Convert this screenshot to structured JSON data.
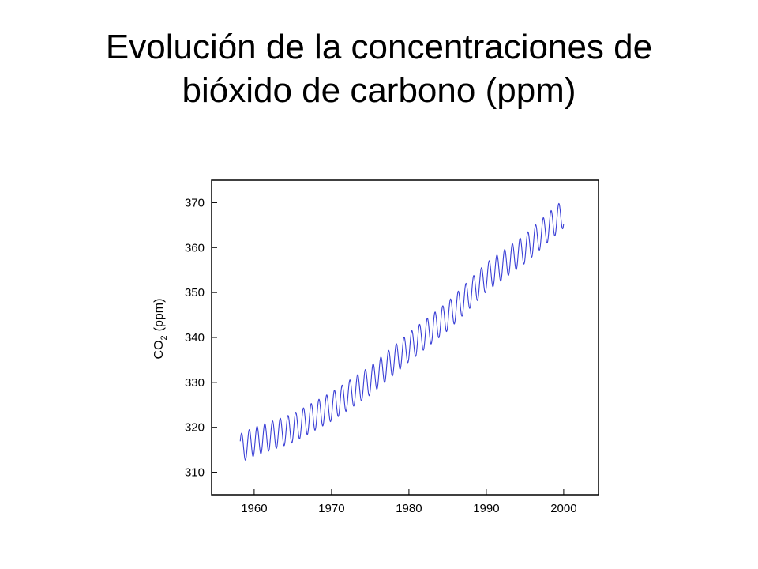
{
  "title": {
    "line1": "Evolución de la concentraciones de",
    "line2": "bióxido de carbono (ppm)"
  },
  "chart_data": {
    "type": "line",
    "ylabel": "CO",
    "ylabel_sub": "2",
    "ylabel_unit": "(ppm)",
    "xlabel": "",
    "xlim": [
      1954.5,
      2004.5
    ],
    "ylim": [
      305,
      375
    ],
    "x_ticks": [
      1960,
      1970,
      1980,
      1990,
      2000
    ],
    "y_ticks": [
      310,
      320,
      330,
      340,
      350,
      360,
      370
    ],
    "grid": false,
    "line_color": "#3a3fd6",
    "series": [
      {
        "x_start": 1958.2,
        "x_end": 2000.0,
        "step": 0.0833,
        "trend_anchors": {
          "x": [
            1958,
            1960,
            1965,
            1970,
            1975,
            1980,
            1985,
            1990,
            1995,
            2000
          ],
          "y": [
            315.2,
            316.8,
            319.8,
            324.6,
            330.4,
            337.8,
            344.7,
            353.4,
            359.7,
            367.6
          ]
        },
        "seasonal_amplitude": 3.2
      }
    ]
  }
}
